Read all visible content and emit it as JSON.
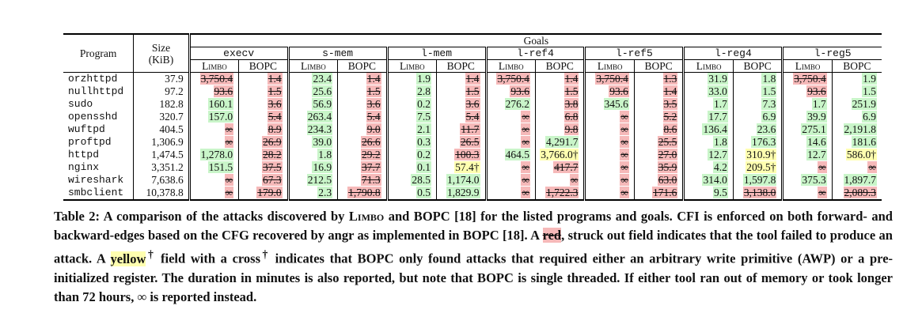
{
  "headers": {
    "program": "Program",
    "size": "Size",
    "size_unit": "(KiB)",
    "goals": "Goals",
    "tool_a": "Limbo",
    "tool_b": "BOPC"
  },
  "goals": [
    "execv",
    "s-mem",
    "l-mem",
    "l-ref4",
    "l-ref5",
    "l-reg4",
    "l-reg5"
  ],
  "rows": [
    {
      "program": "orzhttpd",
      "size": "37.9",
      "cells": [
        [
          "3,750.4",
          "f"
        ],
        [
          "1.4",
          "f"
        ],
        [
          "23.4",
          "g"
        ],
        [
          "1.4",
          "f"
        ],
        [
          "1.9",
          "g"
        ],
        [
          "1.4",
          "f"
        ],
        [
          "3,750.4",
          "f"
        ],
        [
          "1.4",
          "f"
        ],
        [
          "3,750.4",
          "f"
        ],
        [
          "1.3",
          "f"
        ],
        [
          "31.9",
          "g"
        ],
        [
          "1.8",
          "g"
        ],
        [
          "3,750.4",
          "f"
        ],
        [
          "1.9",
          "g"
        ]
      ]
    },
    {
      "program": "nullhttpd",
      "size": "97.2",
      "cells": [
        [
          "93.6",
          "f"
        ],
        [
          "1.5",
          "f"
        ],
        [
          "25.6",
          "g"
        ],
        [
          "1.5",
          "f"
        ],
        [
          "2.8",
          "g"
        ],
        [
          "1.5",
          "f"
        ],
        [
          "93.6",
          "f"
        ],
        [
          "1.5",
          "f"
        ],
        [
          "93.6",
          "f"
        ],
        [
          "1.4",
          "f"
        ],
        [
          "33.0",
          "g"
        ],
        [
          "1.5",
          "g"
        ],
        [
          "93.6",
          "f"
        ],
        [
          "1.5",
          "g"
        ]
      ]
    },
    {
      "program": "sudo",
      "size": "182.8",
      "cells": [
        [
          "160.1",
          "g"
        ],
        [
          "3.6",
          "f"
        ],
        [
          "56.9",
          "g"
        ],
        [
          "3.6",
          "f"
        ],
        [
          "0.2",
          "g"
        ],
        [
          "3.6",
          "f"
        ],
        [
          "276.2",
          "g"
        ],
        [
          "3.8",
          "f"
        ],
        [
          "345.6",
          "g"
        ],
        [
          "3.5",
          "f"
        ],
        [
          "1.7",
          "g"
        ],
        [
          "7.3",
          "g"
        ],
        [
          "1.7",
          "g"
        ],
        [
          "251.9",
          "g"
        ]
      ]
    },
    {
      "program": "opensshd",
      "size": "320.7",
      "cells": [
        [
          "157.0",
          "g"
        ],
        [
          "5.4",
          "f"
        ],
        [
          "263.4",
          "g"
        ],
        [
          "5.4",
          "f"
        ],
        [
          "7.5",
          "g"
        ],
        [
          "5.4",
          "f"
        ],
        [
          "∞",
          "f"
        ],
        [
          "6.8",
          "f"
        ],
        [
          "∞",
          "f"
        ],
        [
          "5.2",
          "f"
        ],
        [
          "17.7",
          "g"
        ],
        [
          "6.9",
          "g"
        ],
        [
          "39.9",
          "g"
        ],
        [
          "6.9",
          "g"
        ]
      ]
    },
    {
      "program": "wuftpd",
      "size": "404.5",
      "cells": [
        [
          "∞",
          "f"
        ],
        [
          "8.9",
          "f"
        ],
        [
          "234.3",
          "g"
        ],
        [
          "9.0",
          "f"
        ],
        [
          "2.1",
          "g"
        ],
        [
          "11.7",
          "f"
        ],
        [
          "∞",
          "f"
        ],
        [
          "9.8",
          "f"
        ],
        [
          "∞",
          "f"
        ],
        [
          "8.6",
          "f"
        ],
        [
          "136.4",
          "g"
        ],
        [
          "23.6",
          "g"
        ],
        [
          "275.1",
          "g"
        ],
        [
          "2,191.8",
          "g"
        ]
      ]
    },
    {
      "program": "proftpd",
      "size": "1,306.9",
      "cells": [
        [
          "∞",
          "f"
        ],
        [
          "26.9",
          "f"
        ],
        [
          "39.0",
          "g"
        ],
        [
          "26.6",
          "f"
        ],
        [
          "0.3",
          "g"
        ],
        [
          "26.5",
          "f"
        ],
        [
          "∞",
          "f"
        ],
        [
          "4,291.7",
          "g"
        ],
        [
          "∞",
          "f"
        ],
        [
          "25.5",
          "f"
        ],
        [
          "1.8",
          "g"
        ],
        [
          "176.3",
          "g"
        ],
        [
          "14.6",
          "g"
        ],
        [
          "181.6",
          "g"
        ]
      ]
    },
    {
      "program": "httpd",
      "size": "1,474.5",
      "cells": [
        [
          "1,278.0",
          "g"
        ],
        [
          "28.2",
          "f"
        ],
        [
          "1.8",
          "g"
        ],
        [
          "29.2",
          "f"
        ],
        [
          "0.2",
          "g"
        ],
        [
          "100.3",
          "f"
        ],
        [
          "464.5",
          "g"
        ],
        [
          "3,766.0†",
          "y"
        ],
        [
          "∞",
          "f"
        ],
        [
          "27.0",
          "f"
        ],
        [
          "12.7",
          "g"
        ],
        [
          "310.9†",
          "y"
        ],
        [
          "12.7",
          "g"
        ],
        [
          "586.0†",
          "y"
        ]
      ]
    },
    {
      "program": "nginx",
      "size": "3,351.2",
      "cells": [
        [
          "151.5",
          "g"
        ],
        [
          "37.5",
          "f"
        ],
        [
          "16.9",
          "g"
        ],
        [
          "37.7",
          "f"
        ],
        [
          "0.1",
          "g"
        ],
        [
          "57.4†",
          "y"
        ],
        [
          "∞",
          "f"
        ],
        [
          "417.7",
          "f"
        ],
        [
          "∞",
          "f"
        ],
        [
          "35.9",
          "f"
        ],
        [
          "4.2",
          "g"
        ],
        [
          "209.5†",
          "y"
        ],
        [
          "∞",
          "f"
        ],
        [
          "∞",
          "f"
        ]
      ]
    },
    {
      "program": "wireshark",
      "size": "7,638.6",
      "cells": [
        [
          "∞",
          "f"
        ],
        [
          "67.3",
          "f"
        ],
        [
          "212.5",
          "g"
        ],
        [
          "71.3",
          "f"
        ],
        [
          "28.5",
          "g"
        ],
        [
          "1,174.0",
          "g"
        ],
        [
          "∞",
          "f"
        ],
        [
          "∞",
          "f"
        ],
        [
          "∞",
          "f"
        ],
        [
          "63.0",
          "f"
        ],
        [
          "314.0",
          "g"
        ],
        [
          "1,597.8",
          "g"
        ],
        [
          "375.3",
          "g"
        ],
        [
          "1,897.7",
          "g"
        ]
      ]
    },
    {
      "program": "smbclient",
      "size": "10,378.8",
      "cells": [
        [
          "∞",
          "f"
        ],
        [
          "179.0",
          "f"
        ],
        [
          "2.3",
          "g"
        ],
        [
          "1,790.8",
          "f"
        ],
        [
          "0.5",
          "g"
        ],
        [
          "1,829.9",
          "g"
        ],
        [
          "∞",
          "f"
        ],
        [
          "1,722.3",
          "f"
        ],
        [
          "∞",
          "f"
        ],
        [
          "171.6",
          "f"
        ],
        [
          "9.5",
          "g"
        ],
        [
          "3,138.0",
          "f"
        ],
        [
          "∞",
          "f"
        ],
        [
          "2,089.3",
          "f"
        ]
      ]
    }
  ],
  "caption": {
    "p1": "Table 2: A comparison of the attacks discovered by ",
    "limbo": "Limbo",
    "p2": " and BOPC [18] for the listed programs and goals. CFI is enforced on both forward- and backward-edges based on the CFG recovered by angr as implemented in BOPC [18]. A ",
    "red": "red",
    "p3": ", struck out field indicates that the tool failed to produce an attack. A ",
    "yellow": "yellow",
    "dagger": "†",
    "p4": " field with a cross",
    "p5": " indicates that BOPC only found attacks that required either an arbitrary write primitive (AWP) or a pre-initialized register. The duration in minutes is also reported, but note that BOPC is single threaded. If either tool ran out of memory or took longer than 72 hours, ∞ is reported instead."
  }
}
